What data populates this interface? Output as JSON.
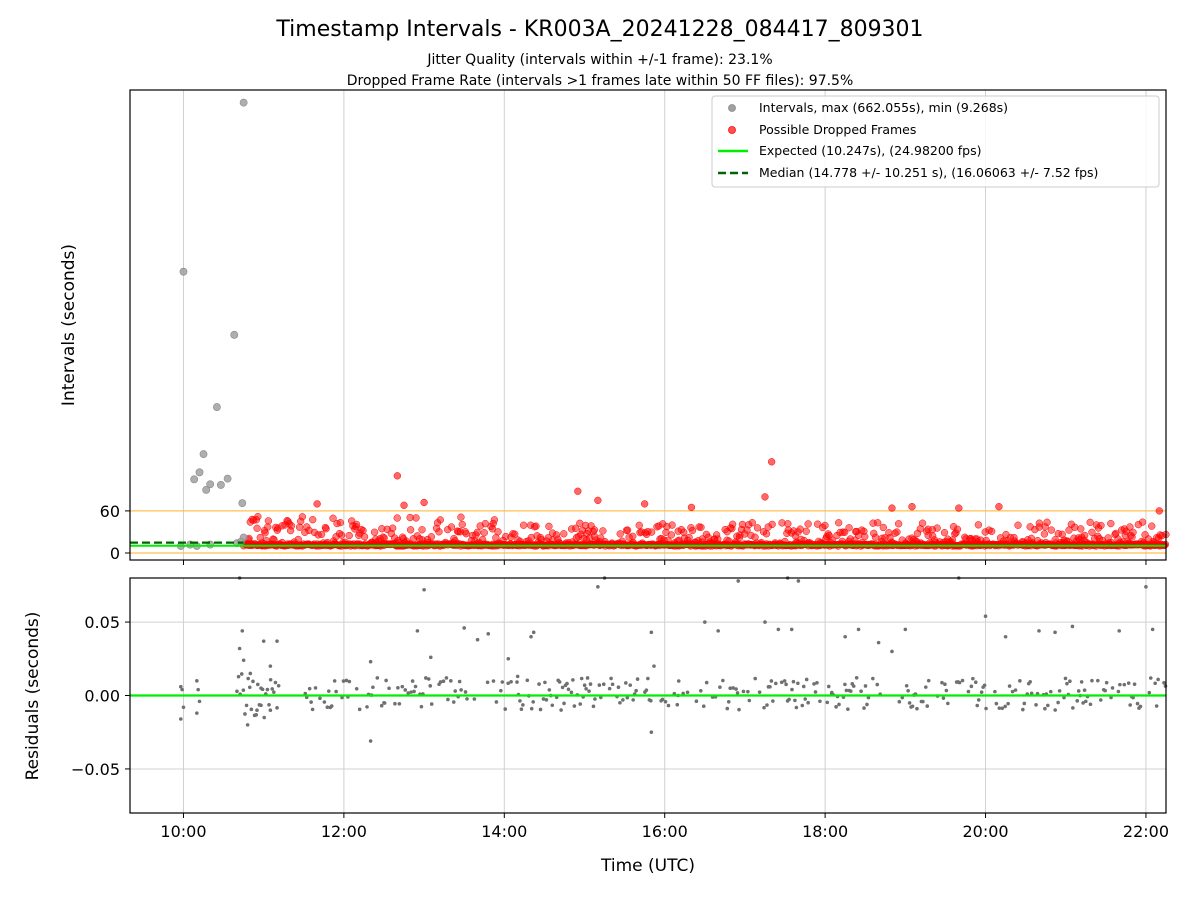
{
  "chart_data": [
    {
      "type": "scatter",
      "title": "Timestamp Intervals - KR003A_20241228_084417_809301",
      "subtitle_lines": [
        "Jitter Quality (intervals within +/-1 frame): 23.1%",
        "Dropped Frame Rate (intervals >1 frames late within 50 FF files): 97.5%"
      ],
      "ylabel": "Intervals (seconds)",
      "x_range": [
        "09:20",
        "22:15"
      ],
      "ylim": [
        -10,
        660
      ],
      "yticks": [
        0,
        60
      ],
      "xticks": [
        "10:00",
        "12:00",
        "14:00",
        "16:00",
        "18:00",
        "20:00",
        "22:00"
      ],
      "grid": "vertical",
      "threshold_lines": [
        0,
        60
      ],
      "legend": {
        "placement": "top-right",
        "entries": [
          "Intervals, max (662.055s), min (9.268s)",
          "Possible Dropped Frames",
          "Expected (10.247s), (24.98200 fps)",
          "Median (14.778 +/- 10.251 s), (16.06063 +/- 7.52 fps)"
        ]
      },
      "series": [
        {
          "name": "Intervals, max (662.055s), min (9.268s)",
          "color": "#a0a0a0",
          "points": [
            [
              "09:58",
              10
            ],
            [
              "10:05",
              12
            ],
            [
              "10:10",
              10
            ],
            [
              "10:20",
              12
            ],
            [
              "10:40",
              14
            ],
            [
              "10:45",
              22
            ],
            [
              "10:43",
              16
            ],
            [
              "10:44",
              71
            ],
            [
              "10:00",
              401
            ],
            [
              "10:08",
              105
            ],
            [
              "10:12",
              115
            ],
            [
              "10:15",
              141
            ],
            [
              "10:17",
              90
            ],
            [
              "10:20",
              98
            ],
            [
              "10:25",
              208
            ],
            [
              "10:28",
              97
            ],
            [
              "10:33",
              106
            ],
            [
              "10:38",
              311
            ],
            [
              "10:45",
              642
            ]
          ]
        },
        {
          "name": "Possible Dropped Frames",
          "color": "#ff0000",
          "dense_range": [
            "10:45",
            "22:15"
          ],
          "baseline_value": 10,
          "outliers": [
            [
              "12:40",
              110
            ],
            [
              "14:55",
              88
            ],
            [
              "17:20",
              130
            ],
            [
              "17:15",
              80
            ],
            [
              "15:10",
              75
            ],
            [
              "13:00",
              72
            ],
            [
              "12:45",
              68
            ],
            [
              "11:40",
              70
            ],
            [
              "15:45",
              70
            ],
            [
              "16:20",
              65
            ],
            [
              "18:50",
              64
            ],
            [
              "19:05",
              66
            ],
            [
              "19:40",
              64
            ],
            [
              "20:10",
              66
            ],
            [
              "22:10",
              60
            ]
          ]
        }
      ],
      "expected_value": 10.247,
      "expected_color": "#00ee00",
      "median_value": 14.778,
      "median_color": "#006400",
      "median_x_range": [
        "09:20",
        "10:45"
      ]
    },
    {
      "type": "scatter",
      "ylabel": "Residuals (seconds)",
      "xlabel": "Time (UTC)",
      "x_range": [
        "09:20",
        "22:15"
      ],
      "ylim": [
        -0.08,
        0.08
      ],
      "yticks": [
        0.05,
        0.0,
        -0.05
      ],
      "ytick_labels": [
        "0.05",
        "0.00",
        "−0.05"
      ],
      "xticks": [
        "10:00",
        "12:00",
        "14:00",
        "16:00",
        "18:00",
        "20:00",
        "22:00"
      ],
      "grid": "both",
      "zero_line_color": "#00ee00",
      "series": [
        {
          "name": "",
          "color": "#707070",
          "points": [
            [
              "09:58",
              0.006
            ],
            [
              "09:58",
              -0.016
            ],
            [
              "09:59",
              0.004
            ],
            [
              "10:00",
              -0.008
            ],
            [
              "10:10",
              0.01
            ],
            [
              "10:10",
              -0.012
            ],
            [
              "10:11",
              0.004
            ],
            [
              "10:12",
              -0.004
            ],
            [
              "10:42",
              0.032
            ],
            [
              "10:44",
              0.044
            ],
            [
              "10:45",
              0.024
            ],
            [
              "10:48",
              -0.02
            ],
            [
              "10:50",
              0.015
            ],
            [
              "10:55",
              -0.01
            ],
            [
              "11:00",
              0.037
            ],
            [
              "11:05",
              0.02
            ],
            [
              "11:10",
              0.037
            ],
            [
              "11:05",
              -0.01
            ],
            [
              "10:58",
              0.005
            ],
            [
              "12:20",
              0.023
            ],
            [
              "12:20",
              -0.031
            ],
            [
              "13:00",
              0.072
            ],
            [
              "12:55",
              0.044
            ],
            [
              "13:05",
              0.026
            ],
            [
              "13:30",
              0.046
            ],
            [
              "13:40",
              0.038
            ],
            [
              "13:48",
              0.042
            ],
            [
              "14:03",
              0.025
            ],
            [
              "14:10",
              0.013
            ],
            [
              "14:20",
              0.04
            ],
            [
              "14:22",
              0.043
            ],
            [
              "15:10",
              0.074
            ],
            [
              "15:15",
              0.08
            ],
            [
              "15:50",
              0.043
            ],
            [
              "15:52",
              0.02
            ],
            [
              "15:50",
              -0.025
            ],
            [
              "16:30",
              0.05
            ],
            [
              "16:40",
              0.044
            ],
            [
              "16:55",
              0.078
            ],
            [
              "17:15",
              0.05
            ],
            [
              "17:25",
              0.045
            ],
            [
              "17:40",
              0.078
            ],
            [
              "17:32",
              0.08
            ],
            [
              "17:35",
              0.045
            ],
            [
              "18:15",
              0.04
            ],
            [
              "18:25",
              0.045
            ],
            [
              "18:40",
              0.036
            ],
            [
              "18:50",
              0.03
            ],
            [
              "19:00",
              0.045
            ],
            [
              "19:40",
              0.08
            ],
            [
              "20:00",
              0.054
            ],
            [
              "20:15",
              0.04
            ],
            [
              "20:40",
              0.044
            ],
            [
              "20:52",
              0.043
            ],
            [
              "21:05",
              0.047
            ],
            [
              "21:40",
              0.044
            ],
            [
              "22:00",
              0.074
            ],
            [
              "22:05",
              0.045
            ],
            [
              "10:42",
              0.08
            ],
            [
              "16:10",
              0.0
            ],
            [
              "12:30",
              -0.005
            ],
            [
              "18:05",
              0.002
            ],
            [
              "21:15",
              -0.004
            ]
          ],
          "dense_range": [
            "11:30",
            "22:15"
          ]
        }
      ]
    }
  ]
}
